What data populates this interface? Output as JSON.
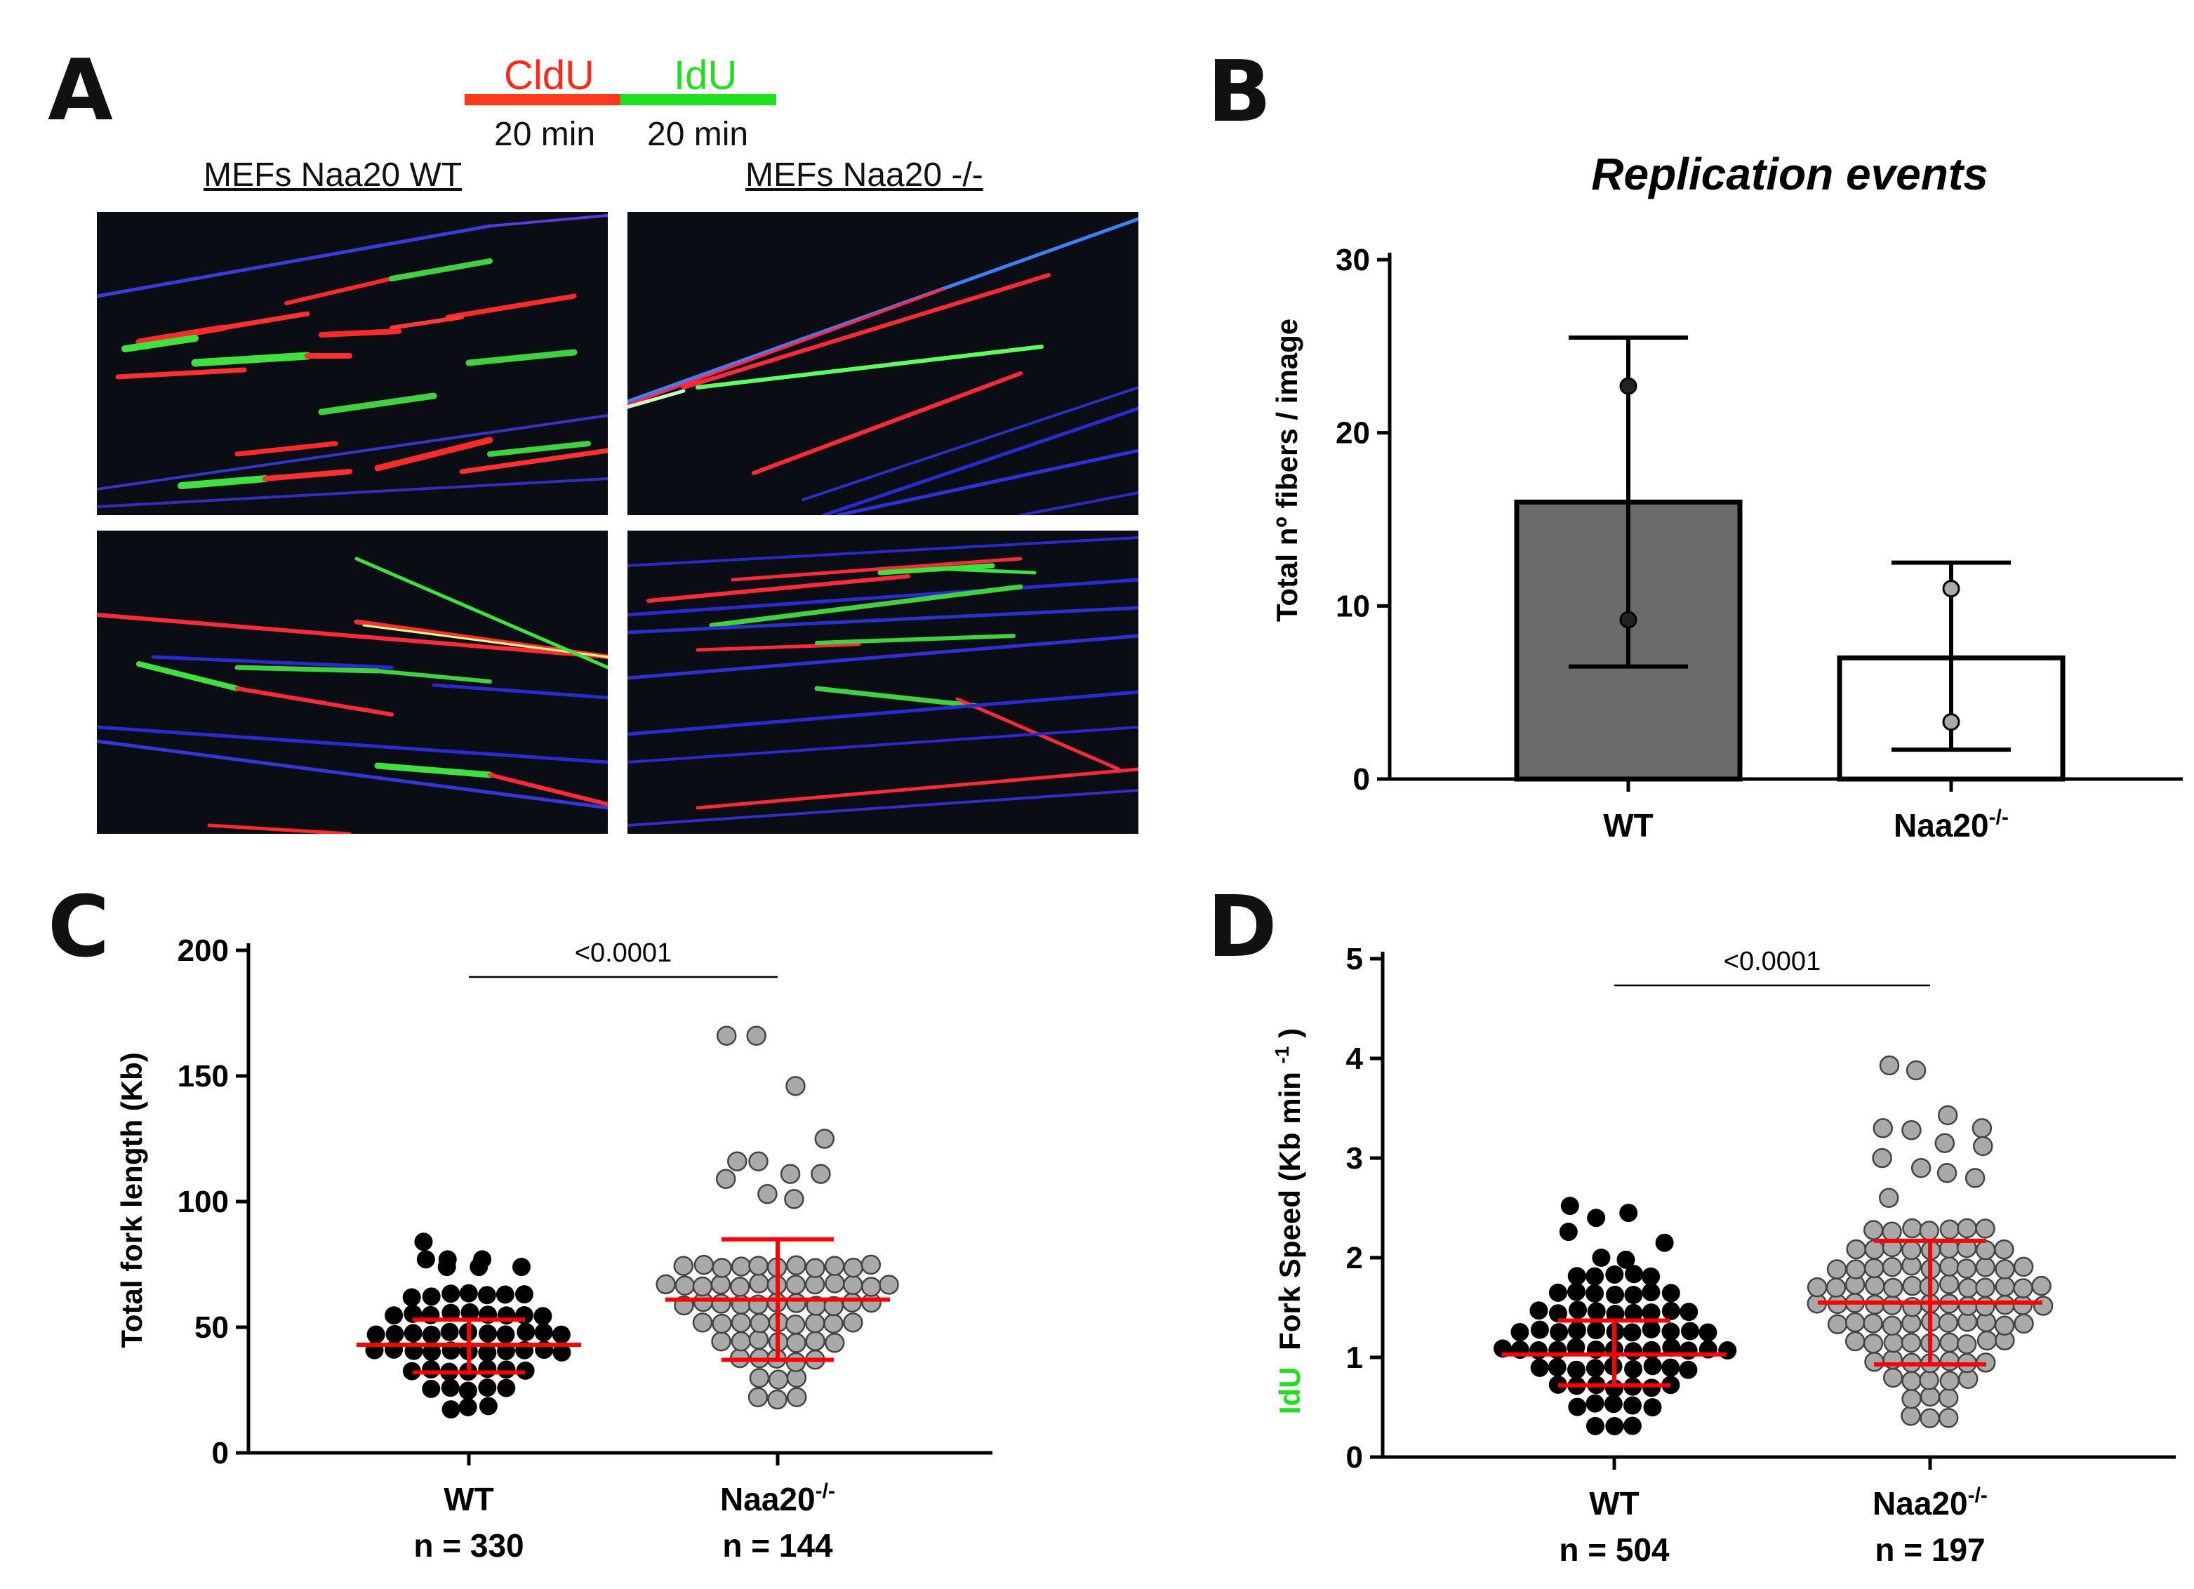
{
  "panel_a": {
    "letter": "A",
    "timeline": {
      "cldu_label": "CldU",
      "idu_label": "IdU",
      "cldu_time": "20 min",
      "idu_time": "20 min",
      "cldu_color": "#ff3a1c",
      "idu_color": "#20e020"
    },
    "wt_title": "MEFs Naa20 WT",
    "ko_title": "MEFs Naa20 -/-"
  },
  "chart_data": [
    {
      "panel": "B",
      "type": "bar",
      "title": "Replication events",
      "ylabel": "Total nº fibers / image",
      "ylim": [
        0,
        30
      ],
      "yticks": [
        0,
        10,
        20,
        30
      ],
      "categories": [
        "WT",
        "Naa20"
      ],
      "category_superscripts": [
        "",
        "-/-"
      ],
      "values": [
        16,
        7
      ],
      "error_low": [
        6.5,
        1.7
      ],
      "error_high": [
        25.5,
        12.5
      ],
      "points": [
        [
          22.7,
          9.2
        ],
        [
          11,
          3.3
        ]
      ],
      "bar_colors": [
        "#6b6b6b",
        "#ffffff"
      ]
    },
    {
      "panel": "C",
      "type": "scatter",
      "ylabel": "Total fork length (Kb)",
      "ylim": [
        0,
        200
      ],
      "yticks": [
        0,
        50,
        100,
        150,
        200
      ],
      "categories": [
        "WT",
        "Naa20"
      ],
      "category_superscripts": [
        "",
        "-/-"
      ],
      "n_labels": [
        "n = 330",
        "n = 144"
      ],
      "p_value": "<0.0001",
      "mean": [
        43,
        61
      ],
      "sd_low": [
        32,
        37
      ],
      "sd_high": [
        53,
        85
      ],
      "range_min": [
        18,
        22
      ],
      "range_max": [
        68,
        80
      ],
      "outliers": [
        [
          77,
          77,
          74,
          74,
          84,
          74,
          77
        ],
        [
          166,
          166,
          146,
          125,
          116,
          116,
          111,
          111,
          109,
          103,
          101
        ]
      ],
      "dot_colors": [
        "#000000",
        "#a9a9a9"
      ],
      "summary_color": "#ff0000"
    },
    {
      "panel": "D",
      "type": "scatter",
      "ylabel_prefix": "IdU",
      "ylabel": "Fork Speed (Kb min",
      "ylabel_superscript": "-1",
      "ylim": [
        0,
        5
      ],
      "yticks": [
        0,
        1,
        2,
        3,
        4,
        5
      ],
      "categories": [
        "WT",
        "Naa20"
      ],
      "category_superscripts": [
        "",
        "-/-"
      ],
      "n_labels": [
        "n = 504",
        "n = 197"
      ],
      "p_value": "<0.0001",
      "mean": [
        1.03,
        1.55
      ],
      "sd_low": [
        0.72,
        0.93
      ],
      "sd_high": [
        1.37,
        2.17
      ],
      "range_min": [
        0.33,
        0.4
      ],
      "range_max": [
        1.9,
        2.4
      ],
      "outliers": [
        [
          2.52,
          2.4,
          2.45,
          2.15,
          2.26,
          2.0,
          1.98
        ],
        [
          3.93,
          3.88,
          3.43,
          3.3,
          3.3,
          3.28,
          3.15,
          3.12,
          3.0,
          2.9,
          2.85,
          2.8,
          2.6
        ]
      ],
      "dot_colors": [
        "#000000",
        "#a9a9a9"
      ],
      "summary_color": "#ff0000"
    }
  ]
}
